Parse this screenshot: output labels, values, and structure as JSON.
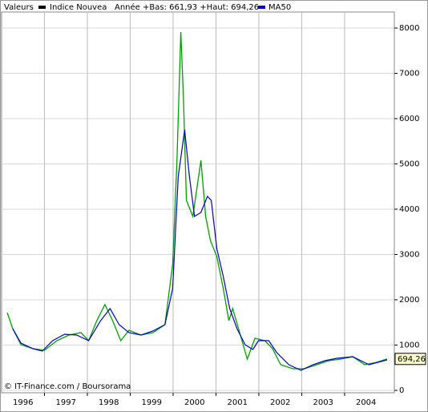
{
  "chart_data": {
    "type": "line",
    "legend": {
      "label": "Valeurs",
      "info": "Année +Bas: 661,93 +Haut: 694,26",
      "position": "top-left"
    },
    "series": [
      {
        "name": "Indice Nouvea",
        "color": "#000000",
        "line_color": "#00a000",
        "x": [
          1996.13,
          1996.26,
          1996.45,
          1996.73,
          1997.0,
          1997.29,
          1997.57,
          1997.85,
          1998.03,
          1998.22,
          1998.41,
          1998.59,
          1998.78,
          1998.97,
          1999.25,
          1999.53,
          1999.81,
          1999.99,
          2000.09,
          2000.18,
          2000.24,
          2000.31,
          2000.46,
          2000.65,
          2000.76,
          2000.87,
          2001.02,
          2001.17,
          2001.3,
          2001.39,
          2001.58,
          2001.73,
          2001.91,
          2002.14,
          2002.32,
          2002.51,
          2002.79,
          2003.07,
          2003.35,
          2003.63,
          2003.91,
          2004.19,
          2004.47,
          2004.75,
          2004.99
        ],
        "values": [
          1717,
          1363,
          1009,
          920,
          885,
          1097,
          1221,
          1274,
          1097,
          1540,
          1894,
          1540,
          1097,
          1327,
          1221,
          1274,
          1451,
          2779,
          5080,
          7911,
          6496,
          4195,
          3841,
          5080,
          3841,
          3310,
          2956,
          2248,
          1540,
          1805,
          1186,
          690,
          1150,
          1097,
          920,
          566,
          478,
          478,
          566,
          655,
          690,
          743,
          566,
          619,
          694
        ]
      },
      {
        "name": "MA50",
        "color": "#0000cc",
        "line_color": "#0000cc",
        "x": [
          1996.26,
          1996.45,
          1996.73,
          1996.95,
          1997.19,
          1997.47,
          1997.75,
          1998.03,
          1998.31,
          1998.53,
          1998.74,
          1998.97,
          1999.25,
          1999.53,
          1999.81,
          1999.99,
          2000.12,
          2000.27,
          2000.38,
          2000.5,
          2000.65,
          2000.8,
          2000.89,
          2001.02,
          2001.17,
          2001.32,
          2001.49,
          2001.68,
          2001.86,
          2001.99,
          2002.23,
          2002.42,
          2002.7,
          2002.98,
          2003.26,
          2003.54,
          2003.82,
          2004.19,
          2004.57,
          2004.99
        ],
        "values": [
          1363,
          1044,
          920,
          867,
          1097,
          1239,
          1221,
          1097,
          1540,
          1805,
          1451,
          1274,
          1221,
          1310,
          1451,
          2248,
          4726,
          5752,
          4726,
          3841,
          3929,
          4283,
          4195,
          3133,
          2513,
          1805,
          1363,
          1009,
          903,
          1097,
          1097,
          832,
          566,
          442,
          566,
          655,
          708,
          743,
          566,
          673
        ]
      }
    ],
    "xlim": [
      1996,
      2005.16
    ],
    "xticks": [
      {
        "value": 1996.5,
        "label": "1996"
      },
      {
        "value": 1997.5,
        "label": "1997"
      },
      {
        "value": 1998.5,
        "label": "1998"
      },
      {
        "value": 1999.5,
        "label": "1999"
      },
      {
        "value": 2000.5,
        "label": "2000"
      },
      {
        "value": 2001.5,
        "label": "2001"
      },
      {
        "value": 2002.5,
        "label": "2002"
      },
      {
        "value": 2003.5,
        "label": "2003"
      },
      {
        "value": 2004.5,
        "label": "2004"
      }
    ],
    "xgrid": [
      1997,
      1998,
      1999,
      2000,
      2001,
      2002,
      2003,
      2004
    ],
    "ylim": [
      -53,
      8354
    ],
    "yticks": [
      0,
      1000,
      2000,
      3000,
      4000,
      5000,
      6000,
      7000,
      8000
    ],
    "grid": true,
    "last_label": {
      "value": 694.26,
      "label": "694,26"
    },
    "source": "© IT-Finance.com / Boursorama"
  }
}
